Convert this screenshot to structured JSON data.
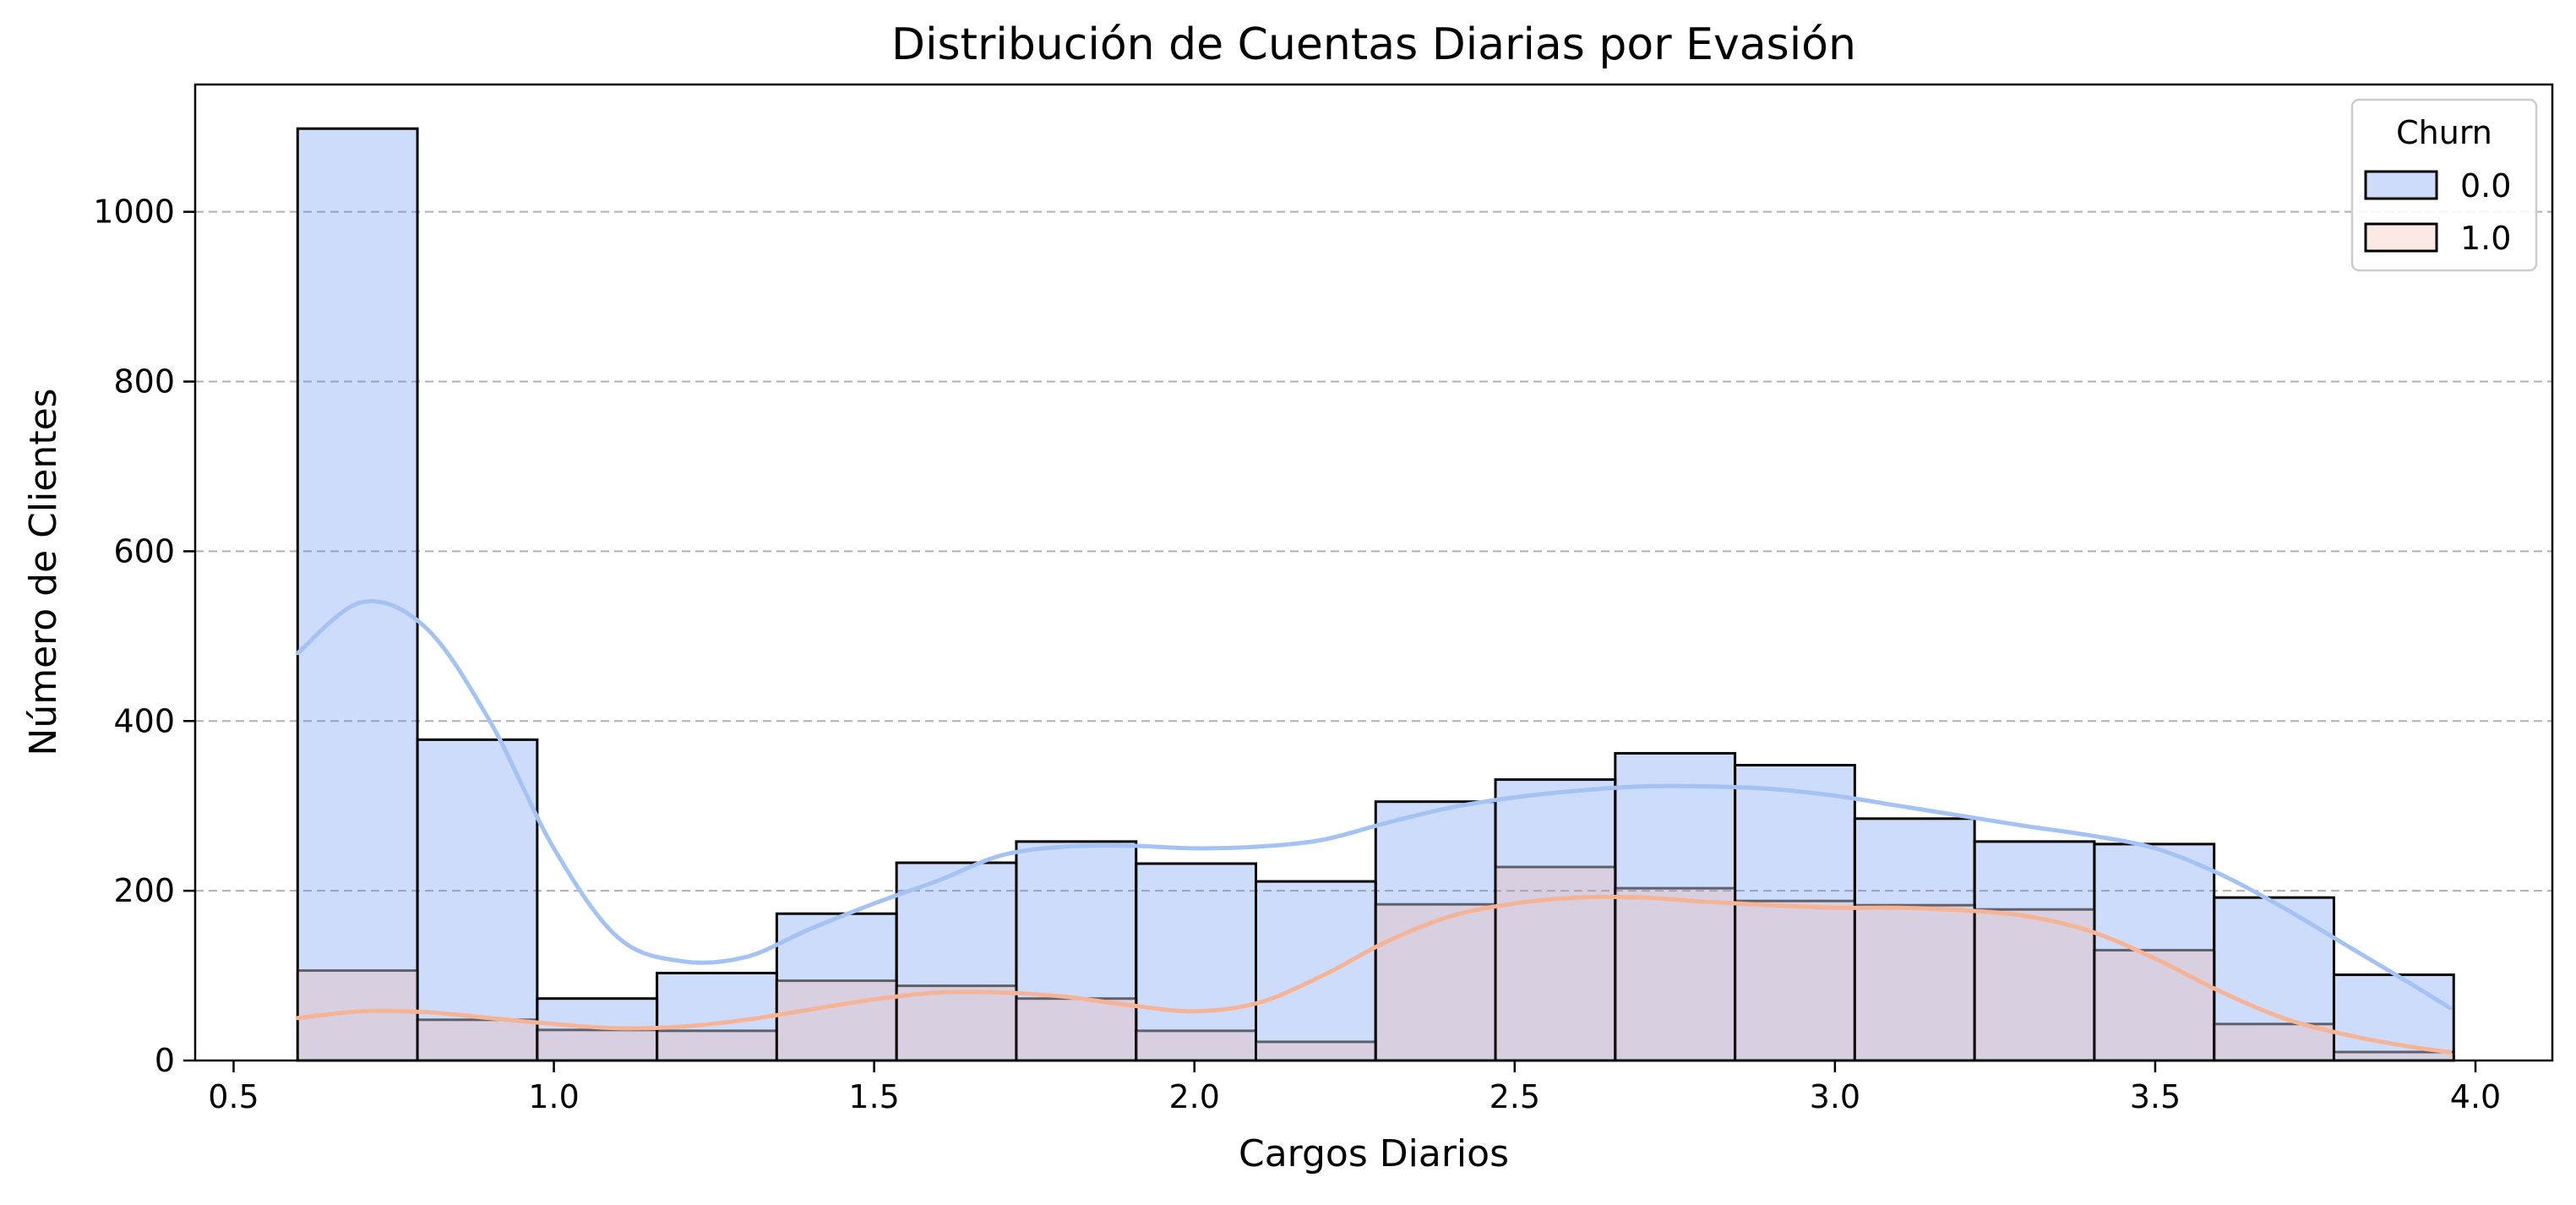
{
  "chart_data": {
    "type": "bar",
    "title": "Distribución de Cuentas Diarias por Evasión",
    "xlabel": "Cargos Diarios",
    "ylabel": "Número de Clientes",
    "xlim": [
      0.44,
      4.12
    ],
    "ylim": [
      0,
      1150
    ],
    "xticks": [
      0.5,
      1.0,
      1.5,
      2.0,
      2.5,
      3.0,
      3.5,
      4.0
    ],
    "xtick_labels": [
      "0.5",
      "1.0",
      "1.5",
      "2.0",
      "2.5",
      "3.0",
      "3.5",
      "4.0"
    ],
    "yticks": [
      0,
      200,
      400,
      600,
      800,
      1000
    ],
    "ytick_labels": [
      "0",
      "200",
      "400",
      "600",
      "800",
      "1000"
    ],
    "grid": "y-dashed",
    "legend": {
      "title": "Churn",
      "placement": "top-right"
    },
    "bin_edges": [
      0.6,
      0.787,
      0.974,
      1.161,
      1.348,
      1.535,
      1.722,
      1.909,
      2.096,
      2.283,
      2.47,
      2.657,
      2.844,
      3.031,
      3.218,
      3.405,
      3.592,
      3.779,
      3.966
    ],
    "series": [
      {
        "name": "0.0",
        "color": "#4a80f0",
        "kde_color": "#a4c2f4",
        "values": [
          1098,
          378,
          73,
          103,
          173,
          233,
          258,
          232,
          211,
          305,
          331,
          362,
          348,
          285,
          258,
          255,
          192,
          101
        ],
        "kde": [
          [
            0.6,
            480
          ],
          [
            0.7,
            540
          ],
          [
            0.8,
            510
          ],
          [
            0.9,
            400
          ],
          [
            1.0,
            250
          ],
          [
            1.1,
            145
          ],
          [
            1.2,
            117
          ],
          [
            1.3,
            122
          ],
          [
            1.4,
            155
          ],
          [
            1.5,
            185
          ],
          [
            1.6,
            212
          ],
          [
            1.7,
            242
          ],
          [
            1.8,
            252
          ],
          [
            1.9,
            253
          ],
          [
            2.0,
            250
          ],
          [
            2.1,
            252
          ],
          [
            2.2,
            260
          ],
          [
            2.3,
            280
          ],
          [
            2.4,
            298
          ],
          [
            2.5,
            310
          ],
          [
            2.6,
            318
          ],
          [
            2.7,
            323
          ],
          [
            2.8,
            323
          ],
          [
            2.9,
            320
          ],
          [
            3.0,
            312
          ],
          [
            3.1,
            300
          ],
          [
            3.2,
            288
          ],
          [
            3.3,
            276
          ],
          [
            3.4,
            265
          ],
          [
            3.5,
            250
          ],
          [
            3.6,
            220
          ],
          [
            3.7,
            180
          ],
          [
            3.8,
            135
          ],
          [
            3.9,
            90
          ],
          [
            3.96,
            62
          ]
        ]
      },
      {
        "name": "1.0",
        "color": "#f4b09a",
        "kde_color": "#f6b496",
        "values": [
          106,
          48,
          36,
          35,
          94,
          88,
          73,
          35,
          22,
          184,
          228,
          203,
          188,
          183,
          178,
          130,
          43,
          10
        ],
        "kde": [
          [
            0.6,
            50
          ],
          [
            0.7,
            58
          ],
          [
            0.8,
            57
          ],
          [
            0.9,
            50
          ],
          [
            1.0,
            43
          ],
          [
            1.1,
            38
          ],
          [
            1.2,
            40
          ],
          [
            1.3,
            48
          ],
          [
            1.4,
            60
          ],
          [
            1.5,
            72
          ],
          [
            1.6,
            80
          ],
          [
            1.7,
            80
          ],
          [
            1.8,
            75
          ],
          [
            1.9,
            65
          ],
          [
            2.0,
            58
          ],
          [
            2.1,
            68
          ],
          [
            2.2,
            100
          ],
          [
            2.3,
            140
          ],
          [
            2.4,
            170
          ],
          [
            2.5,
            185
          ],
          [
            2.6,
            192
          ],
          [
            2.7,
            192
          ],
          [
            2.8,
            187
          ],
          [
            2.9,
            183
          ],
          [
            3.0,
            180
          ],
          [
            3.1,
            180
          ],
          [
            3.2,
            177
          ],
          [
            3.3,
            170
          ],
          [
            3.4,
            152
          ],
          [
            3.5,
            120
          ],
          [
            3.6,
            82
          ],
          [
            3.7,
            50
          ],
          [
            3.8,
            30
          ],
          [
            3.9,
            16
          ],
          [
            3.96,
            10
          ]
        ]
      }
    ]
  }
}
